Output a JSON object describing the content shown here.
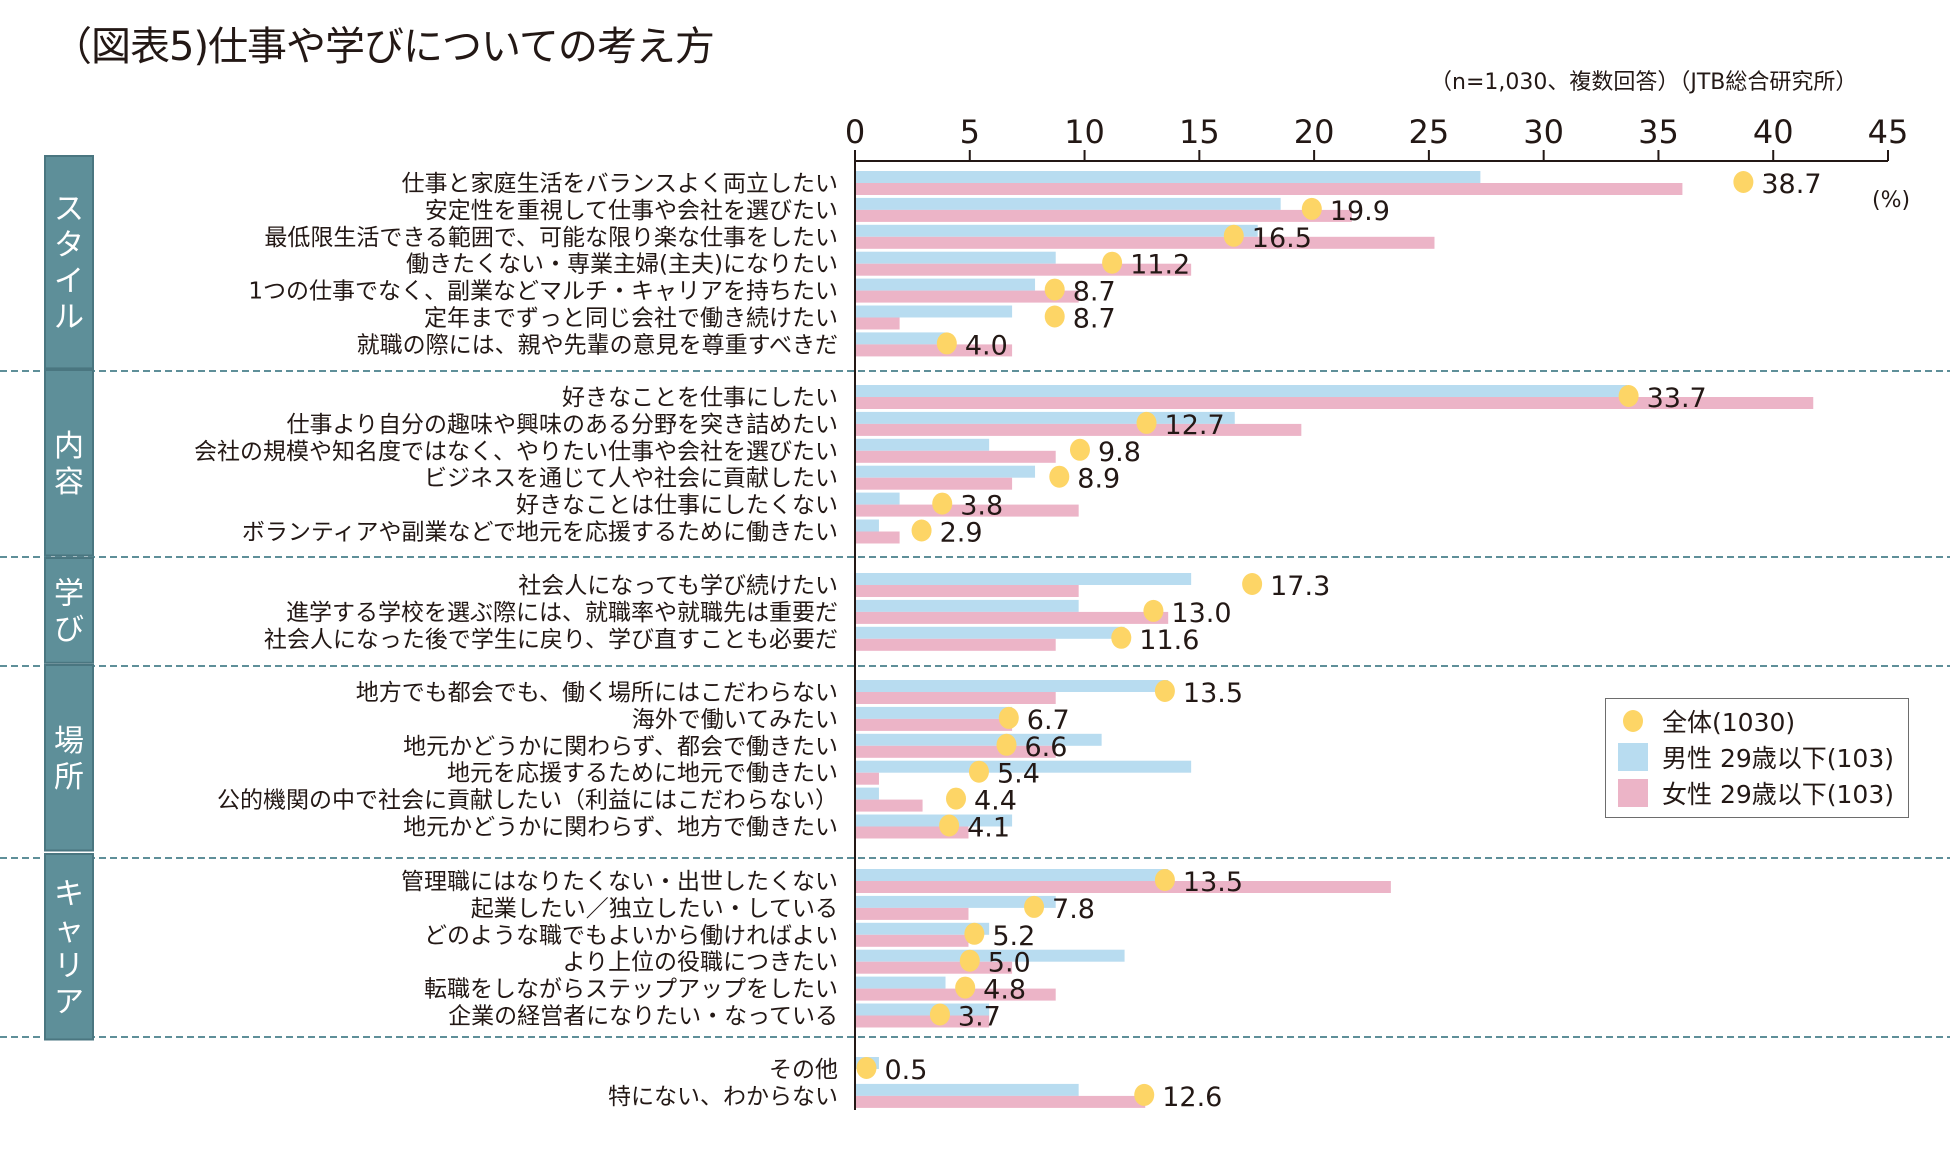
{
  "header": {
    "title": "（図表5)仕事や学びについての考え方",
    "note": "（n=1,030、複数回答）（JTB総合研究所）",
    "unit": "(%)"
  },
  "legend": [
    {
      "name": "全体(1030)",
      "kind": "dot"
    },
    {
      "name": "男性 29歳以下(103)",
      "kind": "bar"
    },
    {
      "name": "女性 29歳以下(103)",
      "kind": "bar"
    }
  ],
  "colors": {
    "total_dot": "#fdd566",
    "male": "#b8dcf0",
    "female": "#ecb4c7",
    "category_box": "#5e8f99",
    "category_border": "#4a7680",
    "divider": "#5e8f99"
  },
  "chart_data": {
    "type": "bar",
    "title": "（図表5)仕事や学びについての考え方",
    "subtitle": "（n=1,030、複数回答）（JTB総合研究所）",
    "xlabel": "",
    "ylabel": "",
    "unit": "(%)",
    "xlim": [
      0,
      45
    ],
    "xticks": [
      0,
      5,
      10,
      15,
      20,
      25,
      30,
      35,
      40,
      45
    ],
    "orientation": "horizontal",
    "legend_position": "right",
    "series_names": [
      "全体(1030)",
      "男性 29歳以下(103)",
      "女性 29歳以下(103)"
    ],
    "groups": [
      {
        "category": "スタイル",
        "items": [
          {
            "label": "仕事と家庭生活をバランスよく両立したい",
            "total": 38.7,
            "male": 27.2,
            "female": 36.0
          },
          {
            "label": "安定性を重視して仕事や会社を選びたい",
            "total": 19.9,
            "male": 18.5,
            "female": 21.6
          },
          {
            "label": "最低限生活できる範囲で、可能な限り楽な仕事をしたい",
            "total": 16.5,
            "male": 17.5,
            "female": 25.2
          },
          {
            "label": "働きたくない・専業主婦(主夫)になりたい",
            "total": 11.2,
            "male": 8.7,
            "female": 14.6
          },
          {
            "label": "1つの仕事でなく、副業などマルチ・キャリアを持ちたい",
            "total": 8.7,
            "male": 7.8,
            "female": 9.7
          },
          {
            "label": "定年までずっと同じ会社で働き続けたい",
            "total": 8.7,
            "male": 6.8,
            "female": 1.9
          },
          {
            "label": "就職の際には、親や先輩の意見を尊重すべきだ",
            "total": 4.0,
            "male": 3.9,
            "female": 6.8
          }
        ]
      },
      {
        "category": "内容",
        "items": [
          {
            "label": "好きなことを仕事にしたい",
            "total": 33.7,
            "male": 33.6,
            "female": 41.7
          },
          {
            "label": "仕事より自分の趣味や興味のある分野を突き詰めたい",
            "total": 12.7,
            "male": 16.5,
            "female": 19.4
          },
          {
            "label": "会社の規模や知名度ではなく、やりたい仕事や会社を選びたい",
            "total": 9.8,
            "male": 5.8,
            "female": 8.7
          },
          {
            "label": "ビジネスを通じて人や社会に貢献したい",
            "total": 8.9,
            "male": 7.8,
            "female": 6.8
          },
          {
            "label": "好きなことは仕事にしたくない",
            "total": 3.8,
            "male": 1.9,
            "female": 9.7
          },
          {
            "label": "ボランティアや副業などで地元を応援するために働きたい",
            "total": 2.9,
            "male": 1.0,
            "female": 1.9
          }
        ]
      },
      {
        "category": "学び",
        "items": [
          {
            "label": "社会人になっても学び続けたい",
            "total": 17.3,
            "male": 14.6,
            "female": 9.7
          },
          {
            "label": "進学する学校を選ぶ際には、就職率や就職先は重要だ",
            "total": 13.0,
            "male": 9.7,
            "female": 13.6
          },
          {
            "label": "社会人になった後で学生に戻り、学び直すことも必要だ",
            "total": 11.6,
            "male": 11.7,
            "female": 8.7
          }
        ]
      },
      {
        "category": "場所",
        "items": [
          {
            "label": "地方でも都会でも、働く場所にはこだわらない",
            "total": 13.5,
            "male": 13.6,
            "female": 8.7
          },
          {
            "label": "海外で働いてみたい",
            "total": 6.7,
            "male": 6.8,
            "female": 6.8
          },
          {
            "label": "地元かどうかに関わらず、都会で働きたい",
            "total": 6.6,
            "male": 10.7,
            "female": 8.7
          },
          {
            "label": "地元を応援するために地元で働きたい",
            "total": 5.4,
            "male": 14.6,
            "female": 1.0
          },
          {
            "label": "公的機関の中で社会に貢献したい（利益にはこだわらない）",
            "total": 4.4,
            "male": 1.0,
            "female": 2.9
          },
          {
            "label": "地元かどうかに関わらず、地方で働きたい",
            "total": 4.1,
            "male": 6.8,
            "female": 4.9
          }
        ]
      },
      {
        "category": "キャリア",
        "items": [
          {
            "label": "管理職にはなりたくない・出世したくない",
            "total": 13.5,
            "male": 13.6,
            "female": 23.3
          },
          {
            "label": "起業したい／独立したい・している",
            "total": 7.8,
            "male": 8.7,
            "female": 4.9
          },
          {
            "label": "どのような職でもよいから働ければよい",
            "total": 5.2,
            "male": 5.8,
            "female": 4.9
          },
          {
            "label": "より上位の役職につきたい",
            "total": 5.0,
            "male": 11.7,
            "female": 6.8
          },
          {
            "label": "転職をしながらステップアップをしたい",
            "total": 4.8,
            "male": 3.9,
            "female": 8.7
          },
          {
            "label": "企業の経営者になりたい・なっている",
            "total": 3.7,
            "male": 5.8,
            "female": 5.8
          }
        ]
      },
      {
        "category": "",
        "items": [
          {
            "label": "その他",
            "total": 0.5,
            "male": 1.0,
            "female": 0.0
          },
          {
            "label": "特にない、わからない",
            "total": 12.6,
            "male": 9.7,
            "female": 12.6
          }
        ]
      }
    ]
  }
}
